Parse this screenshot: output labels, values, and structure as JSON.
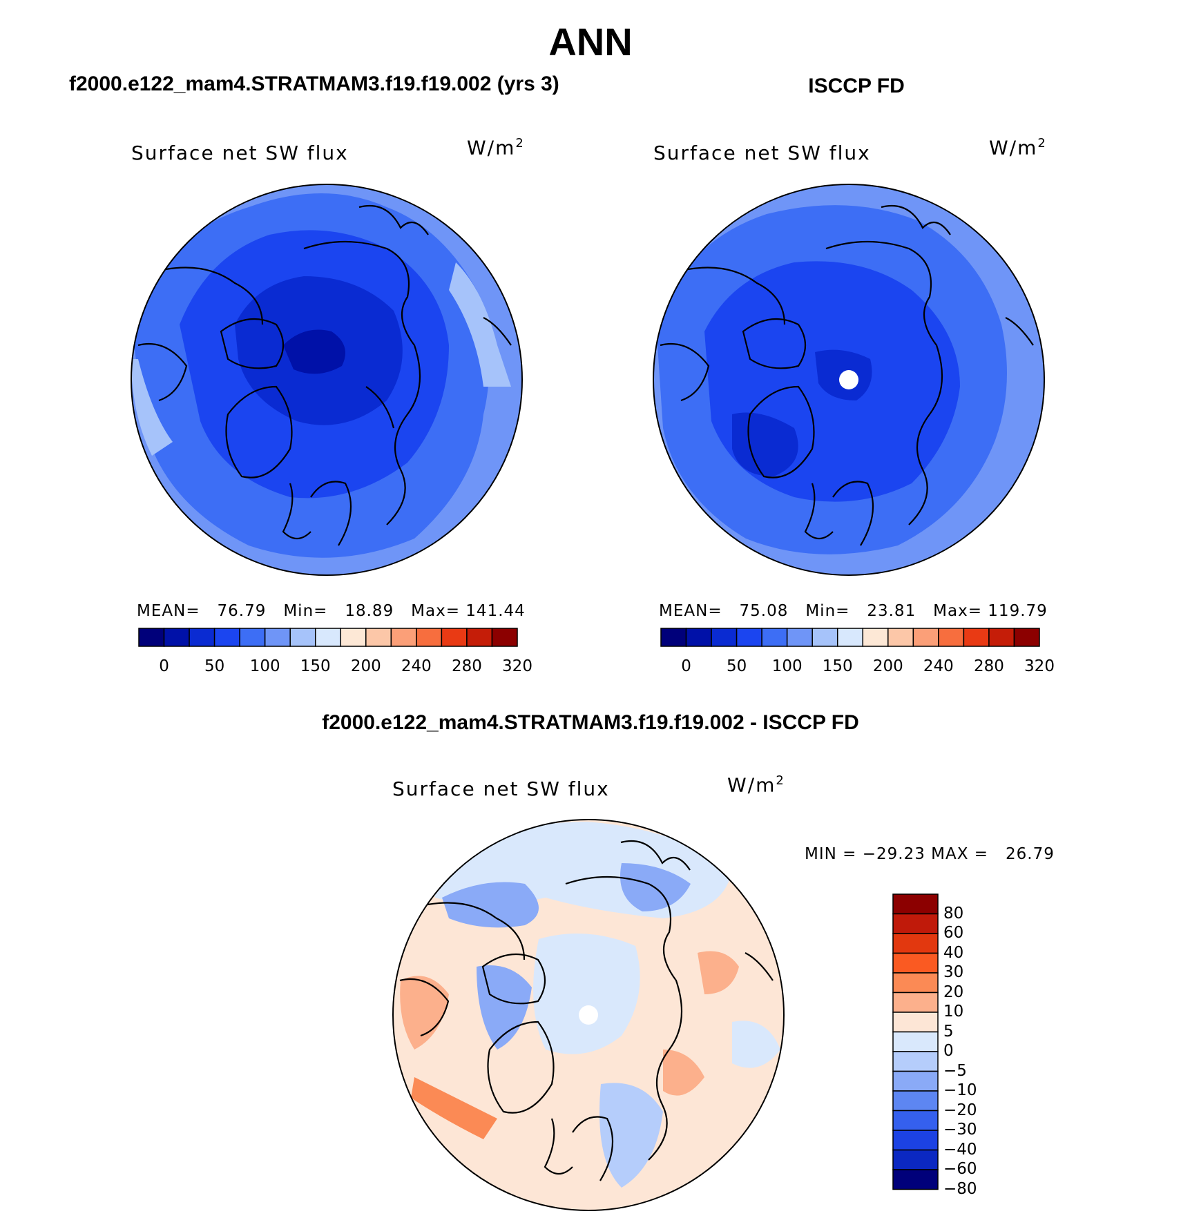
{
  "page": {
    "title": "ANN",
    "subtitle_left": "f2000.e122_mam4.STRATMAM3.f19.f19.002 (yrs 3)",
    "subtitle_right": "ISCCP FD",
    "diff_title": "f2000.e122_mam4.STRATMAM3.f19.f19.002 - ISCCP FD"
  },
  "panels": [
    {
      "variable": "Surface net SW flux",
      "units": "W/m",
      "units_sup": "2",
      "mean_label": "MEAN=",
      "mean": "76.79",
      "min_label": "Min=",
      "min": "18.89",
      "max_label": "Max=",
      "max": "141.44"
    },
    {
      "variable": "Surface net SW flux",
      "units": "W/m",
      "units_sup": "2",
      "mean_label": "MEAN=",
      "mean": "75.08",
      "min_label": "Min=",
      "min": "23.81",
      "max_label": "Max=",
      "max": "119.79"
    },
    {
      "variable": "Surface net SW flux",
      "units": "W/m",
      "units_sup": "2",
      "minmax_text": "MIN = −29.23 MAX =   26.79"
    }
  ],
  "colorbar_abs": {
    "colors": [
      "#00007a",
      "#0011a8",
      "#0a2bd2",
      "#1b45f0",
      "#3d6ef5",
      "#6f95f7",
      "#a6c3fa",
      "#d8e8fd",
      "#fde8d6",
      "#fcc7a8",
      "#fb9f78",
      "#f76e3e",
      "#e93a14",
      "#c51d08",
      "#8c0000"
    ],
    "tick_labels": [
      "0",
      "50",
      "100",
      "150",
      "200",
      "240",
      "280",
      "320"
    ]
  },
  "colorbar_diff": {
    "colors": [
      "#8c0000",
      "#c01a0a",
      "#e2380f",
      "#fa5a22",
      "#fb8a55",
      "#fcb08c",
      "#fde6d6",
      "#d9e8fc",
      "#b5cdfb",
      "#8aaaf7",
      "#5d86f2",
      "#3560ee",
      "#1c42e3",
      "#0b28c2",
      "#00007a"
    ],
    "tick_labels": [
      "80",
      "60",
      "40",
      "30",
      "20",
      "10",
      "5",
      "0",
      "−5",
      "−10",
      "−20",
      "−30",
      "−40",
      "−60",
      "−80"
    ]
  }
}
